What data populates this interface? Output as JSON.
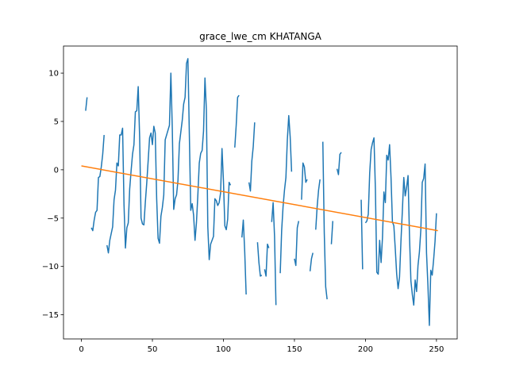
{
  "chart_data": {
    "type": "line",
    "title": "grace_lwe_cm KHATANGA",
    "xlabel": "",
    "ylabel": "",
    "xlim": [
      -12.6,
      264.6
    ],
    "ylim": [
      -17.5,
      12.8
    ],
    "xticks": [
      0,
      50,
      100,
      150,
      200,
      250
    ],
    "yticks": [
      -15,
      -10,
      -5,
      0,
      5,
      10
    ],
    "grid": false,
    "series": [
      {
        "color": "#1f77b4",
        "style": "data",
        "segments": [
          [
            [
              3,
              6.1
            ],
            [
              4,
              7.5
            ]
          ],
          [
            [
              7,
              -6.0
            ],
            [
              8,
              -6.3
            ],
            [
              9,
              -5.2
            ],
            [
              10,
              -4.4
            ],
            [
              11,
              -4.2
            ],
            [
              12,
              -0.8
            ],
            [
              13,
              -0.7
            ],
            [
              14,
              0.3
            ],
            [
              15,
              1.6
            ],
            [
              16,
              3.6
            ]
          ],
          [
            [
              18,
              -7.8
            ],
            [
              19,
              -8.6
            ],
            [
              20,
              -7.3
            ],
            [
              21,
              -6.6
            ],
            [
              22,
              -5.9
            ],
            [
              23,
              -3.1
            ],
            [
              24,
              -2.1
            ],
            [
              25,
              0.7
            ],
            [
              26,
              0.4
            ],
            [
              27,
              3.6
            ],
            [
              28,
              3.6
            ],
            [
              29,
              4.3
            ],
            [
              30,
              -3.6
            ],
            [
              31,
              -8.1
            ],
            [
              32,
              -6.0
            ],
            [
              33,
              -5.5
            ],
            [
              34,
              -2.0
            ],
            [
              35,
              -0.1
            ],
            [
              36,
              1.6
            ],
            [
              37,
              2.6
            ],
            [
              38,
              6.0
            ],
            [
              39,
              6.1
            ],
            [
              40,
              8.6
            ],
            [
              41,
              3.4
            ],
            [
              42,
              -5.0
            ],
            [
              43,
              -5.6
            ],
            [
              44,
              -5.7
            ],
            [
              45,
              -3.4
            ],
            [
              46,
              -1.4
            ],
            [
              47,
              0.9
            ],
            [
              48,
              3.3
            ],
            [
              49,
              3.8
            ],
            [
              50,
              2.6
            ],
            [
              51,
              4.5
            ],
            [
              52,
              3.8
            ],
            [
              53,
              -3.0
            ],
            [
              54,
              -7.1
            ],
            [
              55,
              -7.6
            ],
            [
              56,
              -4.8
            ],
            [
              57,
              -3.9
            ],
            [
              58,
              -2.6
            ],
            [
              59,
              3.1
            ],
            [
              60,
              3.6
            ],
            [
              61,
              4.1
            ],
            [
              62,
              4.6
            ],
            [
              63,
              10.0
            ],
            [
              64,
              4.3
            ],
            [
              65,
              -4.1
            ],
            [
              66,
              -3.0
            ],
            [
              67,
              -2.6
            ],
            [
              68,
              -1.1
            ],
            [
              69,
              2.7
            ],
            [
              70,
              3.9
            ],
            [
              71,
              5.1
            ],
            [
              72,
              6.8
            ],
            [
              73,
              7.5
            ],
            [
              74,
              11.0
            ],
            [
              75,
              11.5
            ],
            [
              76,
              3.7
            ],
            [
              77,
              -4.2
            ],
            [
              78,
              -3.5
            ],
            [
              79,
              -4.7
            ],
            [
              80,
              -7.3
            ],
            [
              81,
              -5.5
            ],
            [
              82,
              -2.6
            ],
            [
              83,
              0.7
            ],
            [
              84,
              1.7
            ],
            [
              85,
              2.0
            ],
            [
              86,
              4.0
            ],
            [
              87,
              9.5
            ],
            [
              88,
              6.2
            ],
            [
              89,
              -5.9
            ],
            [
              90,
              -9.3
            ],
            [
              91,
              -7.7
            ],
            [
              92,
              -7.3
            ],
            [
              93,
              -6.9
            ],
            [
              94,
              -3.0
            ],
            [
              95,
              -3.2
            ],
            [
              96,
              -3.7
            ],
            [
              97,
              -3.4
            ],
            [
              98,
              -2.4
            ],
            [
              99,
              2.2
            ],
            [
              100,
              -1.1
            ],
            [
              101,
              -5.8
            ],
            [
              102,
              -6.2
            ],
            [
              103,
              -5.1
            ],
            [
              104,
              -1.3
            ],
            [
              105,
              -1.6
            ]
          ],
          [
            [
              108,
              2.3
            ],
            [
              109,
              4.6
            ],
            [
              110,
              7.5
            ],
            [
              111,
              7.7
            ]
          ],
          [
            [
              113,
              -7.0
            ],
            [
              114,
              -5.2
            ],
            [
              115,
              -8.5
            ],
            [
              116,
              -12.9
            ]
          ],
          [
            [
              118,
              -1.3
            ],
            [
              119,
              -2.2
            ],
            [
              120,
              0.9
            ],
            [
              121,
              2.4
            ],
            [
              122,
              4.9
            ]
          ],
          [
            [
              124,
              -7.5
            ],
            [
              125,
              -9.6
            ],
            [
              126,
              -11.0
            ],
            [
              127,
              -10.9
            ]
          ],
          [
            [
              129,
              -10.3
            ],
            [
              130,
              -11.0
            ],
            [
              131,
              -7.7
            ],
            [
              132,
              -8.1
            ]
          ],
          [
            [
              134,
              -5.4
            ],
            [
              135,
              -3.4
            ],
            [
              136,
              -6.9
            ],
            [
              137,
              -14.0
            ]
          ],
          [
            [
              140,
              -10.7
            ],
            [
              141,
              -6.3
            ],
            [
              142,
              -3.8
            ],
            [
              143,
              -2.1
            ],
            [
              144,
              -0.8
            ],
            [
              145,
              3.1
            ],
            [
              146,
              5.6
            ],
            [
              147,
              3.4
            ],
            [
              148,
              -0.2
            ]
          ],
          [
            [
              150,
              -9.2
            ],
            [
              151,
              -9.9
            ],
            [
              152,
              -6.0
            ],
            [
              153,
              -5.3
            ]
          ],
          [
            [
              155,
              -3.1
            ],
            [
              156,
              0.7
            ],
            [
              157,
              0.3
            ],
            [
              158,
              -1.3
            ],
            [
              159,
              -1.0
            ]
          ],
          [
            [
              161,
              -10.5
            ],
            [
              162,
              -9.2
            ],
            [
              163,
              -8.6
            ]
          ],
          [
            [
              165,
              -6.2
            ],
            [
              166,
              -3.8
            ],
            [
              167,
              -2.1
            ],
            [
              168,
              -1.0
            ]
          ],
          [
            [
              170,
              2.9
            ],
            [
              171,
              -6.5
            ],
            [
              172,
              -12.1
            ],
            [
              173,
              -13.4
            ]
          ],
          [
            [
              176,
              -7.7
            ],
            [
              177,
              -5.3
            ]
          ],
          [
            [
              180,
              0.1
            ],
            [
              181,
              -0.5
            ],
            [
              182,
              1.6
            ],
            [
              183,
              1.8
            ]
          ],
          [
            [
              197,
              -3.1
            ],
            [
              198,
              -10.3
            ]
          ],
          [
            [
              200,
              -5.5
            ],
            [
              201,
              -5.3
            ],
            [
              202,
              -4.6
            ],
            [
              203,
              -0.3
            ],
            [
              204,
              2.1
            ],
            [
              205,
              2.8
            ],
            [
              206,
              3.3
            ],
            [
              207,
              -2.0
            ],
            [
              208,
              -10.6
            ],
            [
              209,
              -10.8
            ],
            [
              210,
              -7.3
            ],
            [
              211,
              -9.6
            ],
            [
              212,
              -7.0
            ],
            [
              213,
              -2.3
            ],
            [
              214,
              -3.4
            ],
            [
              215,
              1.5
            ],
            [
              216,
              1.0
            ],
            [
              217,
              2.6
            ],
            [
              218,
              -0.8
            ],
            [
              219,
              -5.4
            ],
            [
              220,
              -5.8
            ],
            [
              221,
              -8.2
            ],
            [
              222,
              -10.8
            ],
            [
              223,
              -12.3
            ],
            [
              224,
              -11.1
            ],
            [
              225,
              -7.4
            ],
            [
              226,
              -4.2
            ],
            [
              227,
              -0.8
            ],
            [
              228,
              -2.7
            ],
            [
              229,
              -1.8
            ],
            [
              230,
              -0.6
            ],
            [
              231,
              -6.8
            ],
            [
              232,
              -11.5
            ],
            [
              233,
              -12.9
            ],
            [
              234,
              -14.0
            ],
            [
              235,
              -11.4
            ],
            [
              236,
              -12.6
            ],
            [
              237,
              -9.9
            ],
            [
              238,
              -8.5
            ],
            [
              239,
              -6.2
            ],
            [
              240,
              -1.3
            ],
            [
              241,
              -0.9
            ],
            [
              242,
              0.6
            ],
            [
              243,
              -8.6
            ],
            [
              244,
              -12.0
            ],
            [
              245,
              -16.1
            ],
            [
              246,
              -10.4
            ],
            [
              247,
              -10.9
            ],
            [
              248,
              -9.3
            ],
            [
              249,
              -7.4
            ],
            [
              250,
              -4.5
            ]
          ]
        ]
      },
      {
        "color": "#ff7f0e",
        "style": "trend",
        "segments": [
          [
            [
              0,
              0.4
            ],
            [
              251,
              -6.3
            ]
          ]
        ]
      }
    ]
  }
}
